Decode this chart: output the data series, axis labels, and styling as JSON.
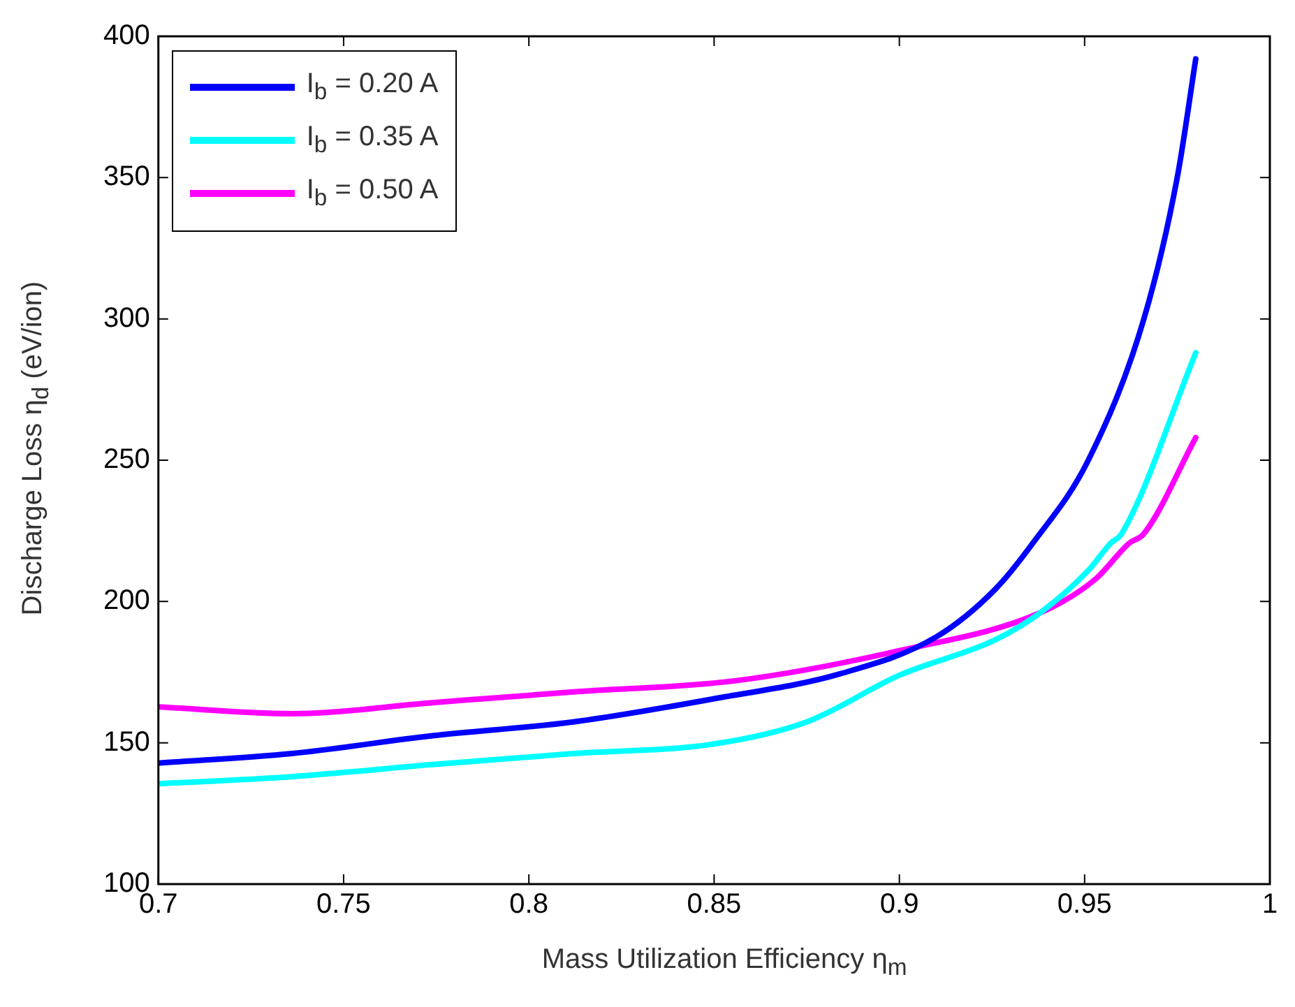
{
  "chart_data": {
    "type": "line",
    "xlabel": "Mass Utilization Efficiency η$_{m}$",
    "ylabel": "Discharge Loss η$_{d}$ (eV/ion)",
    "xlim": [
      0.7,
      1
    ],
    "xticks": [
      0.7,
      0.75,
      0.8,
      0.85,
      0.9,
      0.95,
      1
    ],
    "ylim": [
      100,
      400
    ],
    "yticks": [
      100,
      150,
      200,
      250,
      300,
      350,
      400
    ],
    "grid": false,
    "legend": "top left",
    "marker": "none",
    "line_style": "solid",
    "series": [
      {
        "name": "I$_{b}$ = 0.20 A",
        "color": "#0000ff",
        "x": [
          0.7,
          0.736,
          0.774,
          0.812,
          0.85,
          0.884,
          0.91,
          0.926,
          0.936,
          0.951,
          0.966,
          0.975,
          0.98
        ],
        "values": [
          142.8,
          146.2,
          152.5,
          157.4,
          165.6,
          174.4,
          187.5,
          204.5,
          220.6,
          250,
          300,
          350,
          392
        ]
      },
      {
        "name": "I$_{b}$ = 0.35 A",
        "color": "#00ffff",
        "x": [
          0.7,
          0.736,
          0.774,
          0.812,
          0.85,
          0.875,
          0.9,
          0.926,
          0.938,
          0.951,
          0.957,
          0.96,
          0.98
        ],
        "values": [
          135.5,
          138,
          142.3,
          146.2,
          149.6,
          157.4,
          173.9,
          186.5,
          196,
          211,
          220.6,
          224,
          288
        ]
      },
      {
        "name": "I$_{b}$ = 0.50 A",
        "color": "#ff00ff",
        "x": [
          0.7,
          0.736,
          0.774,
          0.812,
          0.856,
          0.9,
          0.938,
          0.953,
          0.962,
          0.966,
          0.98
        ],
        "values": [
          162.7,
          160.3,
          164.2,
          168,
          172,
          182.6,
          196,
          208,
          220.6,
          224,
          258
        ]
      }
    ]
  }
}
